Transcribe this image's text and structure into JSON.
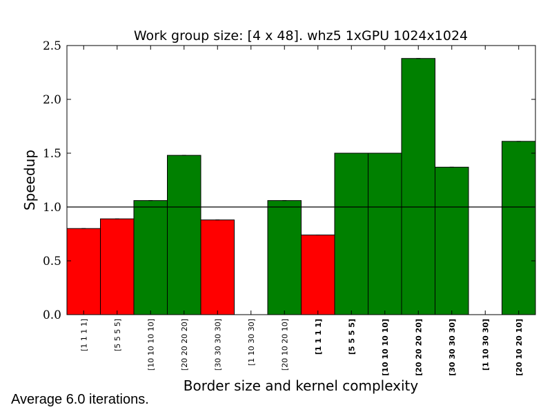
{
  "chart_data": {
    "type": "bar",
    "title": "Work group size: [4 x 48]. whz5 1xGPU 1024x1024",
    "xlabel": "Border size and kernel complexity",
    "ylabel": "Speedup",
    "ylim": [
      0,
      2.5
    ],
    "yticks": [
      "0.0",
      "0.5",
      "1.0",
      "1.5",
      "2.0",
      "2.5"
    ],
    "reference_line": 1.0,
    "grid": false,
    "categories": [
      "[1 1 1 1]",
      "[5 5 5 5]",
      "[10 10 10 10]",
      "[20 20 20 20]",
      "[30 30 30 30]",
      "[1 10 30 30]",
      "[20 10 20 10]",
      "[1 1 1 1]",
      "[5 5 5 5]",
      "[10 10 10 10]",
      "[20 20 20 20]",
      "[30 30 30 30]",
      "[1 10 30 30]",
      "[20 10 20 10]"
    ],
    "bold_labels": [
      false,
      false,
      false,
      false,
      false,
      false,
      false,
      true,
      true,
      true,
      true,
      true,
      true,
      true
    ],
    "values": [
      0.8,
      0.89,
      1.06,
      1.48,
      0.88,
      0.0,
      1.06,
      0.74,
      1.5,
      1.5,
      2.38,
      1.37,
      0.0,
      1.61
    ],
    "colors": {
      "above": "#008000",
      "below": "#ff0000"
    }
  },
  "footnote": "Average 6.0 iterations."
}
